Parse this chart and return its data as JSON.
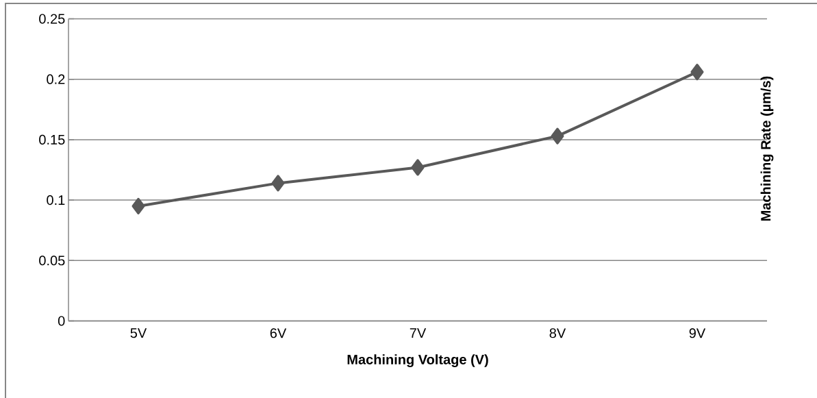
{
  "chart_data": {
    "type": "line",
    "xlabel": "Machining Voltage (V)",
    "ylabel": "Machining Rate (µm/s)",
    "categories": [
      "5V",
      "6V",
      "7V",
      "8V",
      "9V"
    ],
    "series": [
      {
        "color": "#595959",
        "values": [
          0.095,
          0.114,
          0.127,
          0.153,
          0.206
        ]
      }
    ],
    "ylim": [
      0,
      0.25
    ],
    "yticks": [
      0,
      0.05,
      0.1,
      0.15,
      0.2,
      0.25
    ],
    "grid": "y",
    "marker": "diamond",
    "line_style": "solid"
  }
}
